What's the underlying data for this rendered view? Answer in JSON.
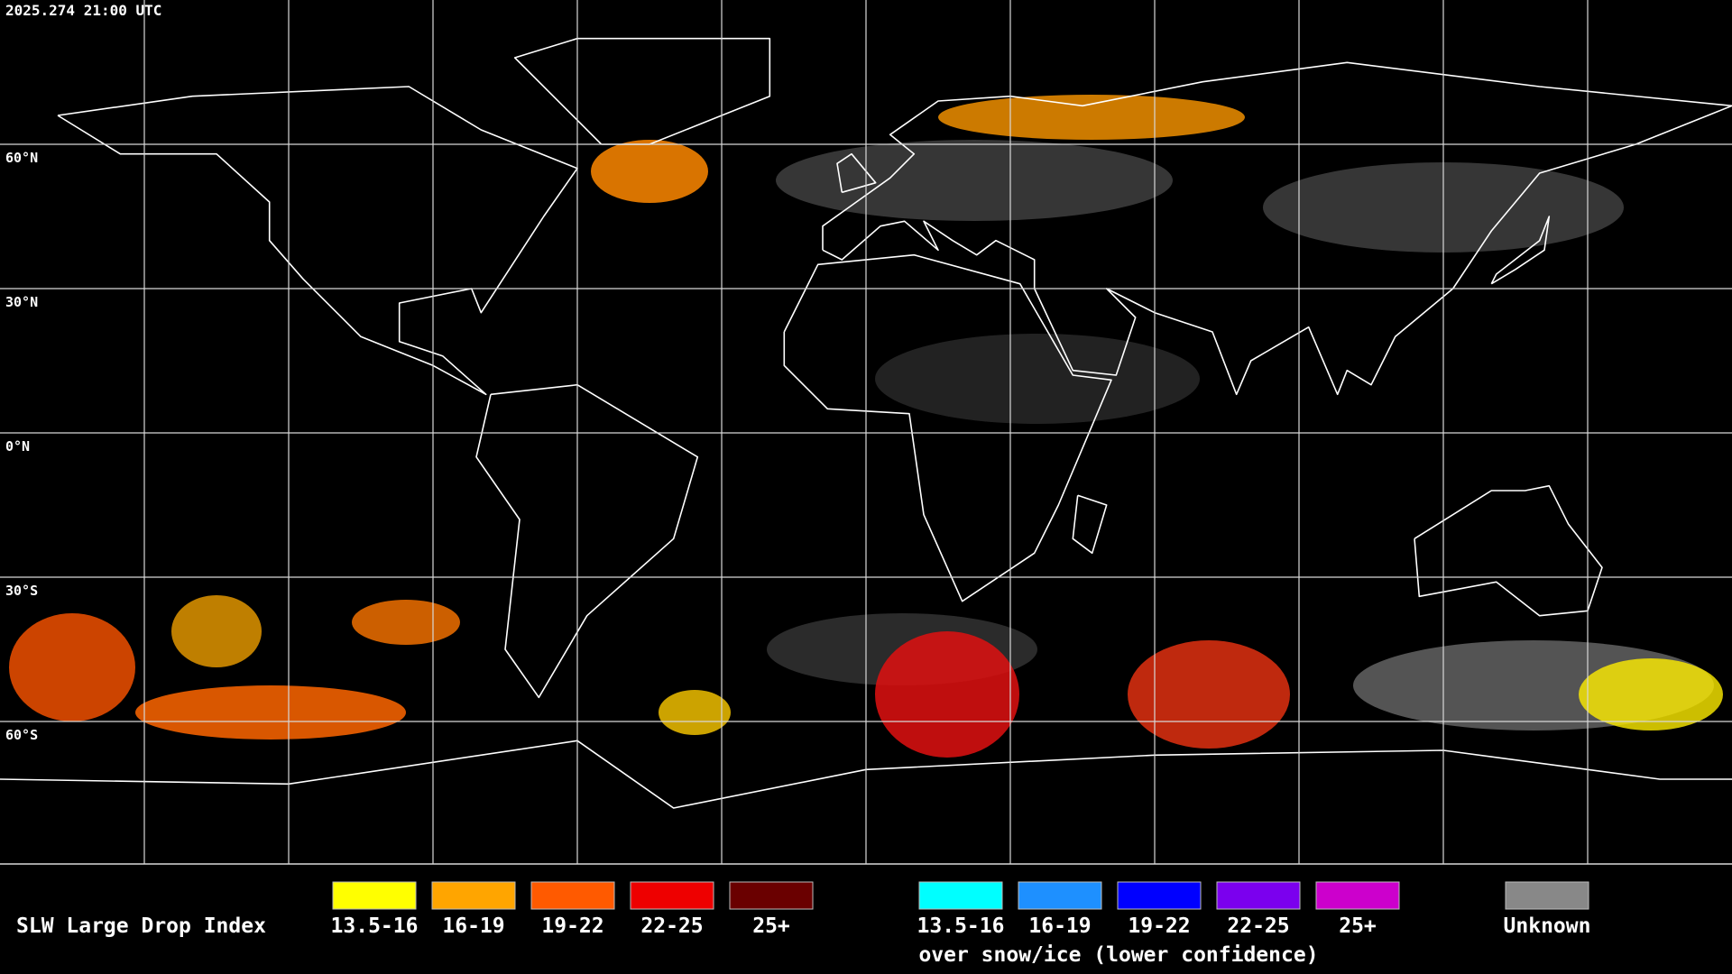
{
  "header": {
    "timestamp": "2025.274 21:00 UTC"
  },
  "map": {
    "lat_labels": [
      "60°N",
      "30°N",
      "0°N",
      "30°S",
      "60°S"
    ]
  },
  "legend": {
    "title": "SLW Large Drop Index",
    "items": [
      {
        "label": "13.5-16",
        "color": "#ffff00"
      },
      {
        "label": "16-19",
        "color": "#ffa500"
      },
      {
        "label": "19-22",
        "color": "#ff5a00"
      },
      {
        "label": "22-25",
        "color": "#ee0000"
      },
      {
        "label": "25+",
        "color": "#6a0000"
      }
    ],
    "snow_items": [
      {
        "label": "13.5-16",
        "color": "#00ffff"
      },
      {
        "label": "16-19",
        "color": "#1e90ff"
      },
      {
        "label": "19-22",
        "color": "#0000ff"
      },
      {
        "label": "22-25",
        "color": "#7b00ee"
      },
      {
        "label": "25+",
        "color": "#cc00cc"
      }
    ],
    "snow_note": "over snow/ice (lower confidence)",
    "unknown": {
      "label": "Unknown",
      "color": "#888888"
    }
  }
}
